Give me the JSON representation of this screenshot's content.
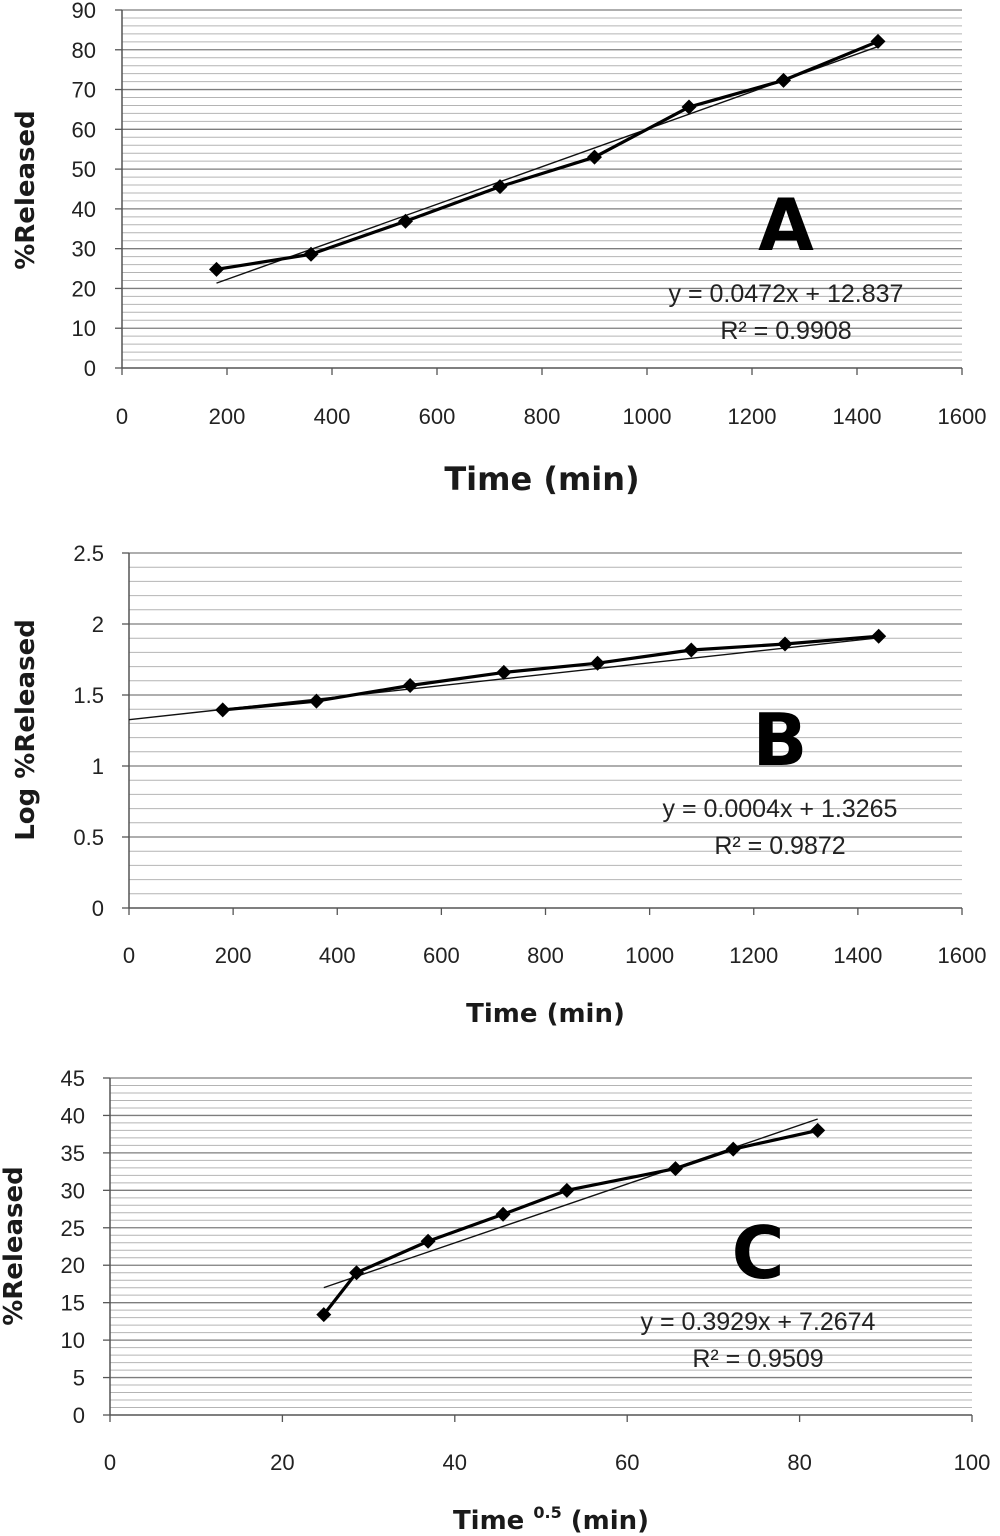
{
  "chart_data": [
    {
      "type": "scatter",
      "panel_label": "A",
      "xlabel": "Time (min)",
      "ylabel": "%Released",
      "xlim": [
        0,
        1600
      ],
      "ylim": [
        0,
        90
      ],
      "xticks": [
        0,
        200,
        400,
        600,
        800,
        1000,
        1200,
        1400,
        1600
      ],
      "yticks": [
        0,
        10,
        20,
        30,
        40,
        50,
        60,
        70,
        80,
        90
      ],
      "minor_y_step": 2,
      "grid": true,
      "series": [
        {
          "x": [
            180,
            360,
            540,
            720,
            900,
            1080,
            1260,
            1440
          ],
          "y": [
            24.8,
            28.6,
            36.9,
            45.6,
            53.0,
            65.6,
            72.3,
            82.1
          ],
          "marker": "diamond",
          "connected": true
        }
      ],
      "trendline": {
        "slope": 0.0472,
        "intercept": 12.837,
        "x_range": [
          180,
          1440
        ]
      },
      "equation": "y = 0.0472x + 12.837",
      "r_squared": "R² = 0.9908"
    },
    {
      "type": "scatter",
      "panel_label": "B",
      "xlabel": "Time (min)",
      "ylabel": "Log  %Released",
      "xlim": [
        0,
        1600
      ],
      "ylim": [
        0,
        2.5
      ],
      "xticks": [
        0,
        200,
        400,
        600,
        800,
        1000,
        1200,
        1400,
        1600
      ],
      "yticks": [
        0,
        0.5,
        1,
        1.5,
        2,
        2.5
      ],
      "ytick_labels": [
        "0",
        "0.5",
        "1",
        "1.5",
        "2",
        "2.5"
      ],
      "minor_y_step": 0.1,
      "grid": true,
      "series": [
        {
          "x": [
            180,
            360,
            540,
            720,
            900,
            1080,
            1260,
            1440
          ],
          "y": [
            1.395,
            1.457,
            1.567,
            1.659,
            1.724,
            1.817,
            1.859,
            1.914
          ],
          "marker": "diamond",
          "connected": true
        }
      ],
      "trendline": {
        "slope": 0.0004,
        "intercept": 1.3265,
        "x_range": [
          0,
          1440
        ]
      },
      "equation": "y = 0.0004x + 1.3265",
      "r_squared": "R² = 0.9872"
    },
    {
      "type": "scatter",
      "panel_label": "C",
      "xlabel_main": "Time",
      "xlabel_sup": "0.5",
      "xlabel_tail": " (min)",
      "ylabel": "%Released",
      "xlim": [
        0,
        100
      ],
      "ylim": [
        0,
        45
      ],
      "xticks": [
        0,
        20,
        40,
        60,
        80,
        100
      ],
      "yticks": [
        0,
        5,
        10,
        15,
        20,
        25,
        30,
        35,
        40,
        45
      ],
      "minor_y_step": 1,
      "grid": true,
      "series": [
        {
          "x": [
            24.8,
            28.6,
            36.9,
            45.6,
            53.0,
            65.6,
            72.3,
            82.1
          ],
          "y": [
            13.4,
            19.0,
            23.2,
            26.8,
            30.0,
            32.9,
            35.5,
            38.0
          ],
          "marker": "diamond",
          "connected": true
        }
      ],
      "trendline": {
        "slope": 0.3929,
        "intercept": 7.2674,
        "x_range": [
          24.8,
          82.1
        ]
      },
      "equation": "y = 0.3929x + 7.2674",
      "r_squared": "R² = 0.9509"
    }
  ]
}
